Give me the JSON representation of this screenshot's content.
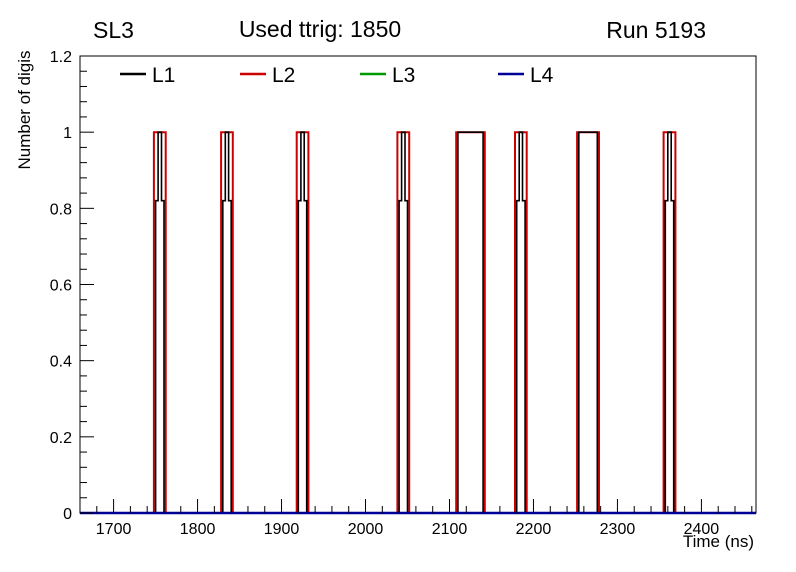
{
  "chart_data": {
    "type": "line",
    "title": "Used ttrig: 1850",
    "corner_labels": {
      "left": "SL3",
      "right": "Run 5193"
    },
    "xlabel": "Time (ns)",
    "ylabel": "Number of digis",
    "x_range": [
      1660,
      2465
    ],
    "y_range": [
      0,
      1.2
    ],
    "x_major_ticks": [
      1700,
      1800,
      1900,
      2000,
      2100,
      2200,
      2300,
      2400
    ],
    "x_minor_step": 20,
    "y_major_ticks": [
      {
        "v": 0,
        "label": "0"
      },
      {
        "v": 0.2,
        "label": "0.2"
      },
      {
        "v": 0.4,
        "label": "0.4"
      },
      {
        "v": 0.6,
        "label": "0.6"
      },
      {
        "v": 0.8,
        "label": "0.8"
      },
      {
        "v": 1,
        "label": "1"
      },
      {
        "v": 1.2,
        "label": "1.2"
      }
    ],
    "y_minor_step": 0.04,
    "grid": false,
    "legend_position": "top-inside-horizontal",
    "draw_order": [
      "L2",
      "L1",
      "L3",
      "L4"
    ],
    "series": [
      {
        "name": "L1",
        "color": "#000000",
        "stroke_width": 1.6,
        "baseline": 0,
        "steps": [
          [
            1750,
            0.82
          ],
          [
            1753,
            1
          ],
          [
            1757,
            0.82
          ],
          [
            1760,
            0
          ],
          [
            1830,
            0.82
          ],
          [
            1833,
            1
          ],
          [
            1837,
            0.82
          ],
          [
            1840,
            0
          ],
          [
            1920,
            0.82
          ],
          [
            1923,
            1
          ],
          [
            1927,
            0.82
          ],
          [
            1930,
            0
          ],
          [
            2040,
            0.82
          ],
          [
            2043,
            1
          ],
          [
            2047,
            0.82
          ],
          [
            2050,
            0
          ],
          [
            2110,
            1
          ],
          [
            2140,
            0
          ],
          [
            2180,
            0.82
          ],
          [
            2183,
            1
          ],
          [
            2187,
            0.82
          ],
          [
            2190,
            0
          ],
          [
            2254,
            1
          ],
          [
            2276,
            0
          ],
          [
            2357,
            0.82
          ],
          [
            2360,
            1
          ],
          [
            2364,
            0.82
          ],
          [
            2367,
            0
          ]
        ]
      },
      {
        "name": "L2",
        "color": "#cc0000",
        "stroke_width": 2,
        "baseline": 0,
        "steps": [
          [
            1748,
            1
          ],
          [
            1762,
            0
          ],
          [
            1828,
            1
          ],
          [
            1842,
            0
          ],
          [
            1918,
            1
          ],
          [
            1932,
            0
          ],
          [
            2038,
            1
          ],
          [
            2052,
            0
          ],
          [
            2108,
            1
          ],
          [
            2142,
            0
          ],
          [
            2178,
            1
          ],
          [
            2192,
            0
          ],
          [
            2252,
            1
          ],
          [
            2278,
            0
          ],
          [
            2355,
            1
          ],
          [
            2369,
            0
          ]
        ]
      },
      {
        "name": "L3",
        "color": "#009900",
        "stroke_width": 2,
        "baseline": 0,
        "steps": []
      },
      {
        "name": "L4",
        "color": "#000099",
        "stroke_width": 2.4,
        "baseline": 0,
        "steps": []
      }
    ]
  }
}
